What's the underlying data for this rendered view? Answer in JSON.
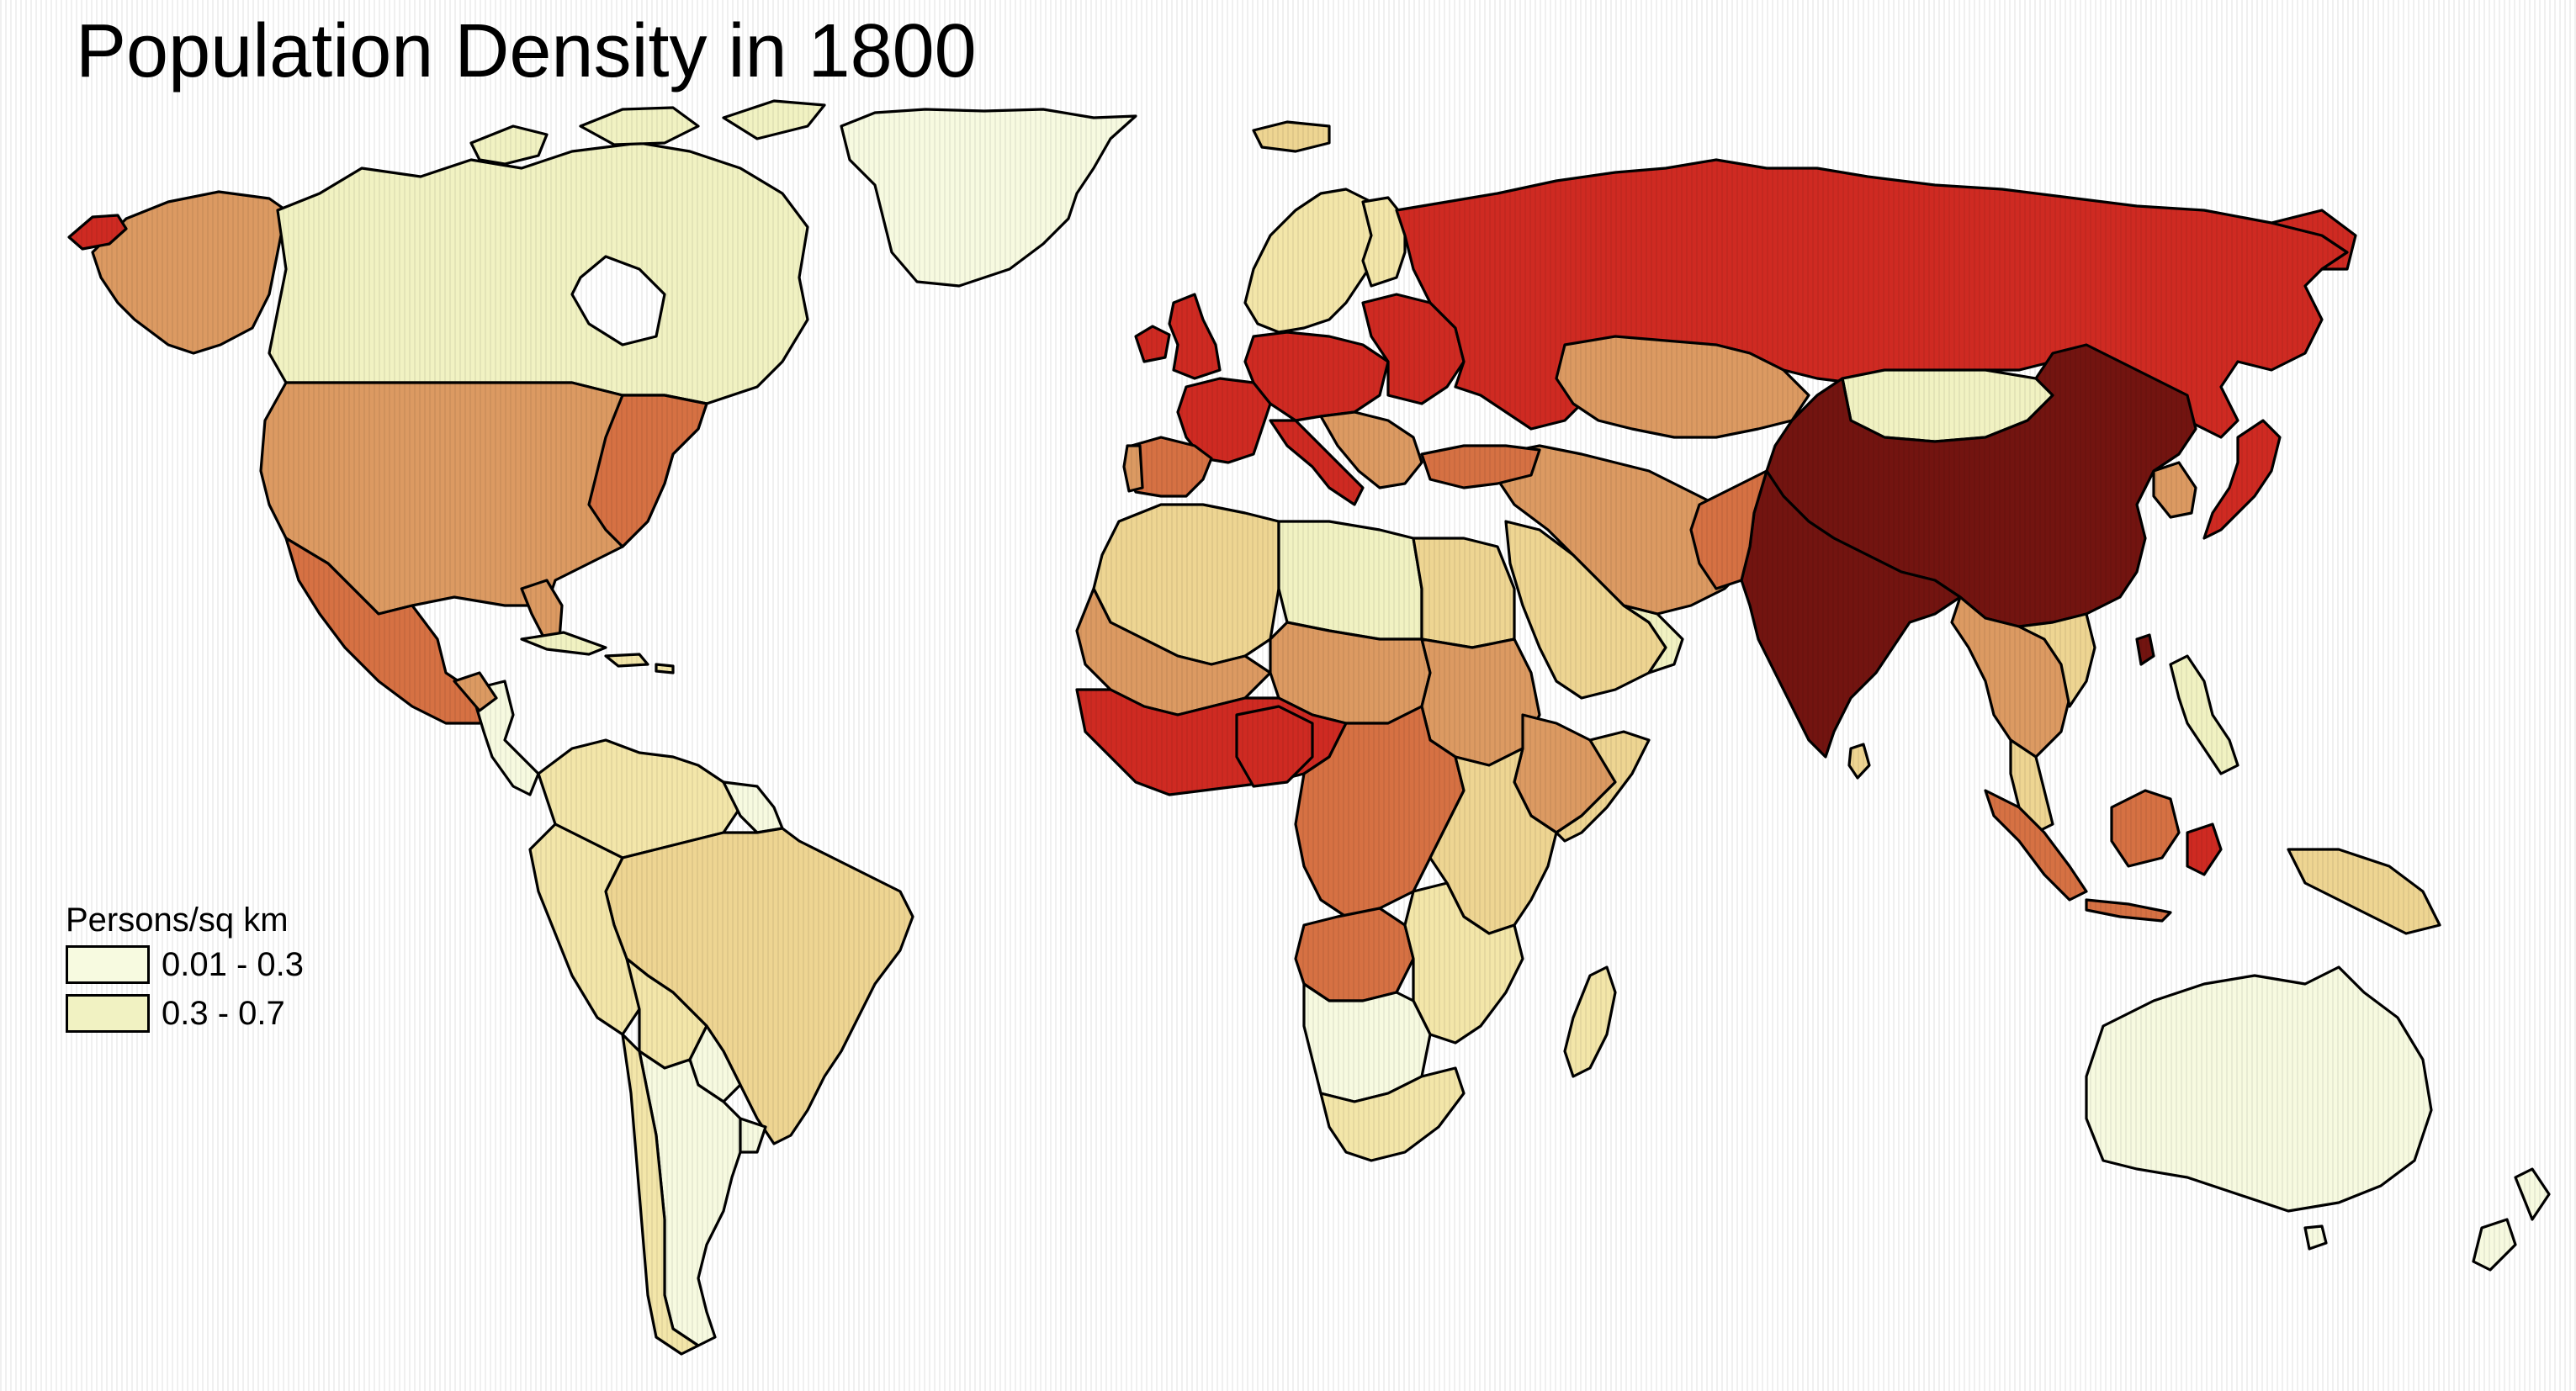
{
  "map": {
    "title": "Population Density in 1800",
    "colors": {
      "c1": "#f7fae0",
      "c2": "#f1f2c2",
      "c3": "#f3e6a9",
      "c4": "#eed592",
      "c5": "#dc9a62",
      "c6": "#d67143",
      "c7": "#cf2a22",
      "c8": "#731410",
      "ocean": "#ffffff",
      "outline": "#000000"
    }
  },
  "legend": {
    "title": "Persons/sq km",
    "items": [
      {
        "label": "0.01 - 0.3",
        "color": "#f7fae0"
      },
      {
        "label": "0.3 - 0.7",
        "color": "#f1f2c2"
      }
    ]
  }
}
